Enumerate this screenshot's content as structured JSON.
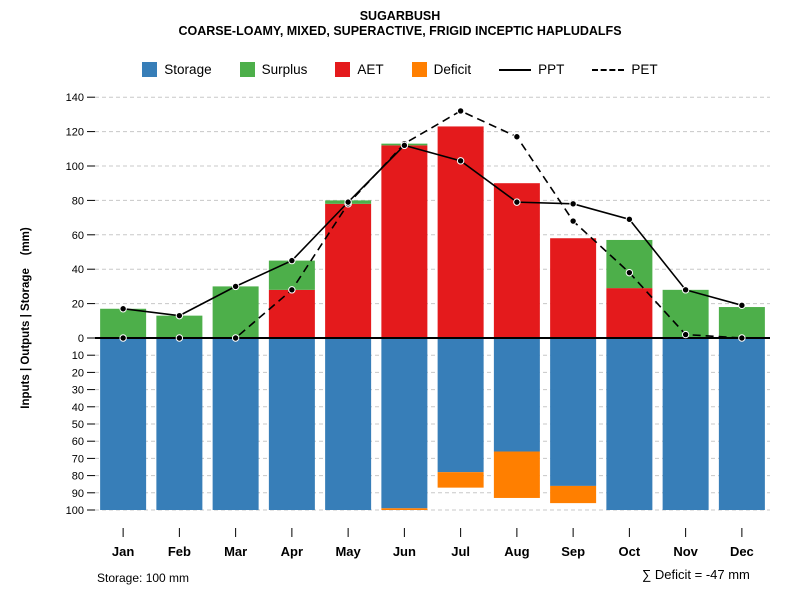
{
  "header": {
    "title": "SUGARBUSH",
    "subtitle": "COARSE-LOAMY, MIXED, SUPERACTIVE, FRIGID INCEPTIC HAPLUDALFS"
  },
  "legend": {
    "items": [
      {
        "label": "Storage",
        "type": "box",
        "color": "#377EB8"
      },
      {
        "label": "Surplus",
        "type": "box",
        "color": "#4DAF4A"
      },
      {
        "label": "AET",
        "type": "box",
        "color": "#E41A1C"
      },
      {
        "label": "Deficit",
        "type": "box",
        "color": "#FF7F00"
      },
      {
        "label": "PPT",
        "type": "line-solid",
        "color": "#000000"
      },
      {
        "label": "PET",
        "type": "line-dashed",
        "color": "#000000"
      }
    ]
  },
  "footer": {
    "storage_note": "Storage: 100 mm",
    "deficit_total": "∑ Deficit = -47 mm"
  },
  "chart_data": {
    "type": "bar",
    "title": "SUGARBUSH",
    "subtitle": "COARSE-LOAMY, MIXED, SUPERACTIVE, FRIGID INCEPTIC HAPLUDALFS",
    "ylabel": "Inputs | Outputs | Storage    (mm)",
    "categories": [
      "Jan",
      "Feb",
      "Mar",
      "Apr",
      "May",
      "Jun",
      "Jul",
      "Aug",
      "Sep",
      "Oct",
      "Nov",
      "Dec"
    ],
    "series": [
      {
        "name": "Storage",
        "type": "bar-down",
        "color": "#377EB8",
        "values": [
          100,
          100,
          100,
          100,
          100,
          99,
          78,
          66,
          86,
          100,
          100,
          100
        ]
      },
      {
        "name": "Surplus",
        "type": "bar",
        "color": "#4DAF4A",
        "values": [
          17,
          13,
          30,
          17,
          2,
          1,
          0,
          0,
          0,
          28,
          28,
          18
        ]
      },
      {
        "name": "AET",
        "type": "bar",
        "color": "#E41A1C",
        "values": [
          0,
          0,
          0,
          28,
          78,
          112,
          123,
          90,
          58,
          29,
          0,
          0
        ]
      },
      {
        "name": "Deficit",
        "type": "bar-down",
        "color": "#FF7F00",
        "values": [
          0,
          0,
          0,
          0,
          0,
          1,
          9,
          27,
          10,
          0,
          0,
          0
        ]
      },
      {
        "name": "PPT",
        "type": "line",
        "style": "solid",
        "color": "#000000",
        "values": [
          17,
          13,
          30,
          45,
          79,
          112,
          103,
          79,
          78,
          69,
          28,
          19
        ]
      },
      {
        "name": "PET",
        "type": "line",
        "style": "dashed",
        "color": "#000000",
        "values": [
          0,
          0,
          0,
          28,
          78,
          113,
          132,
          117,
          68,
          38,
          2,
          0
        ]
      }
    ],
    "y_axis": {
      "upper_ticks": [
        0,
        20,
        40,
        60,
        80,
        100,
        120,
        140
      ],
      "lower_ticks": [
        10,
        20,
        30,
        40,
        50,
        60,
        70,
        80,
        90,
        100
      ],
      "upper_max": 140,
      "lower_max": 100
    },
    "grid": "dashed",
    "legend_position": "top",
    "storage_capacity_mm": 100,
    "deficit_total_mm": -47
  }
}
